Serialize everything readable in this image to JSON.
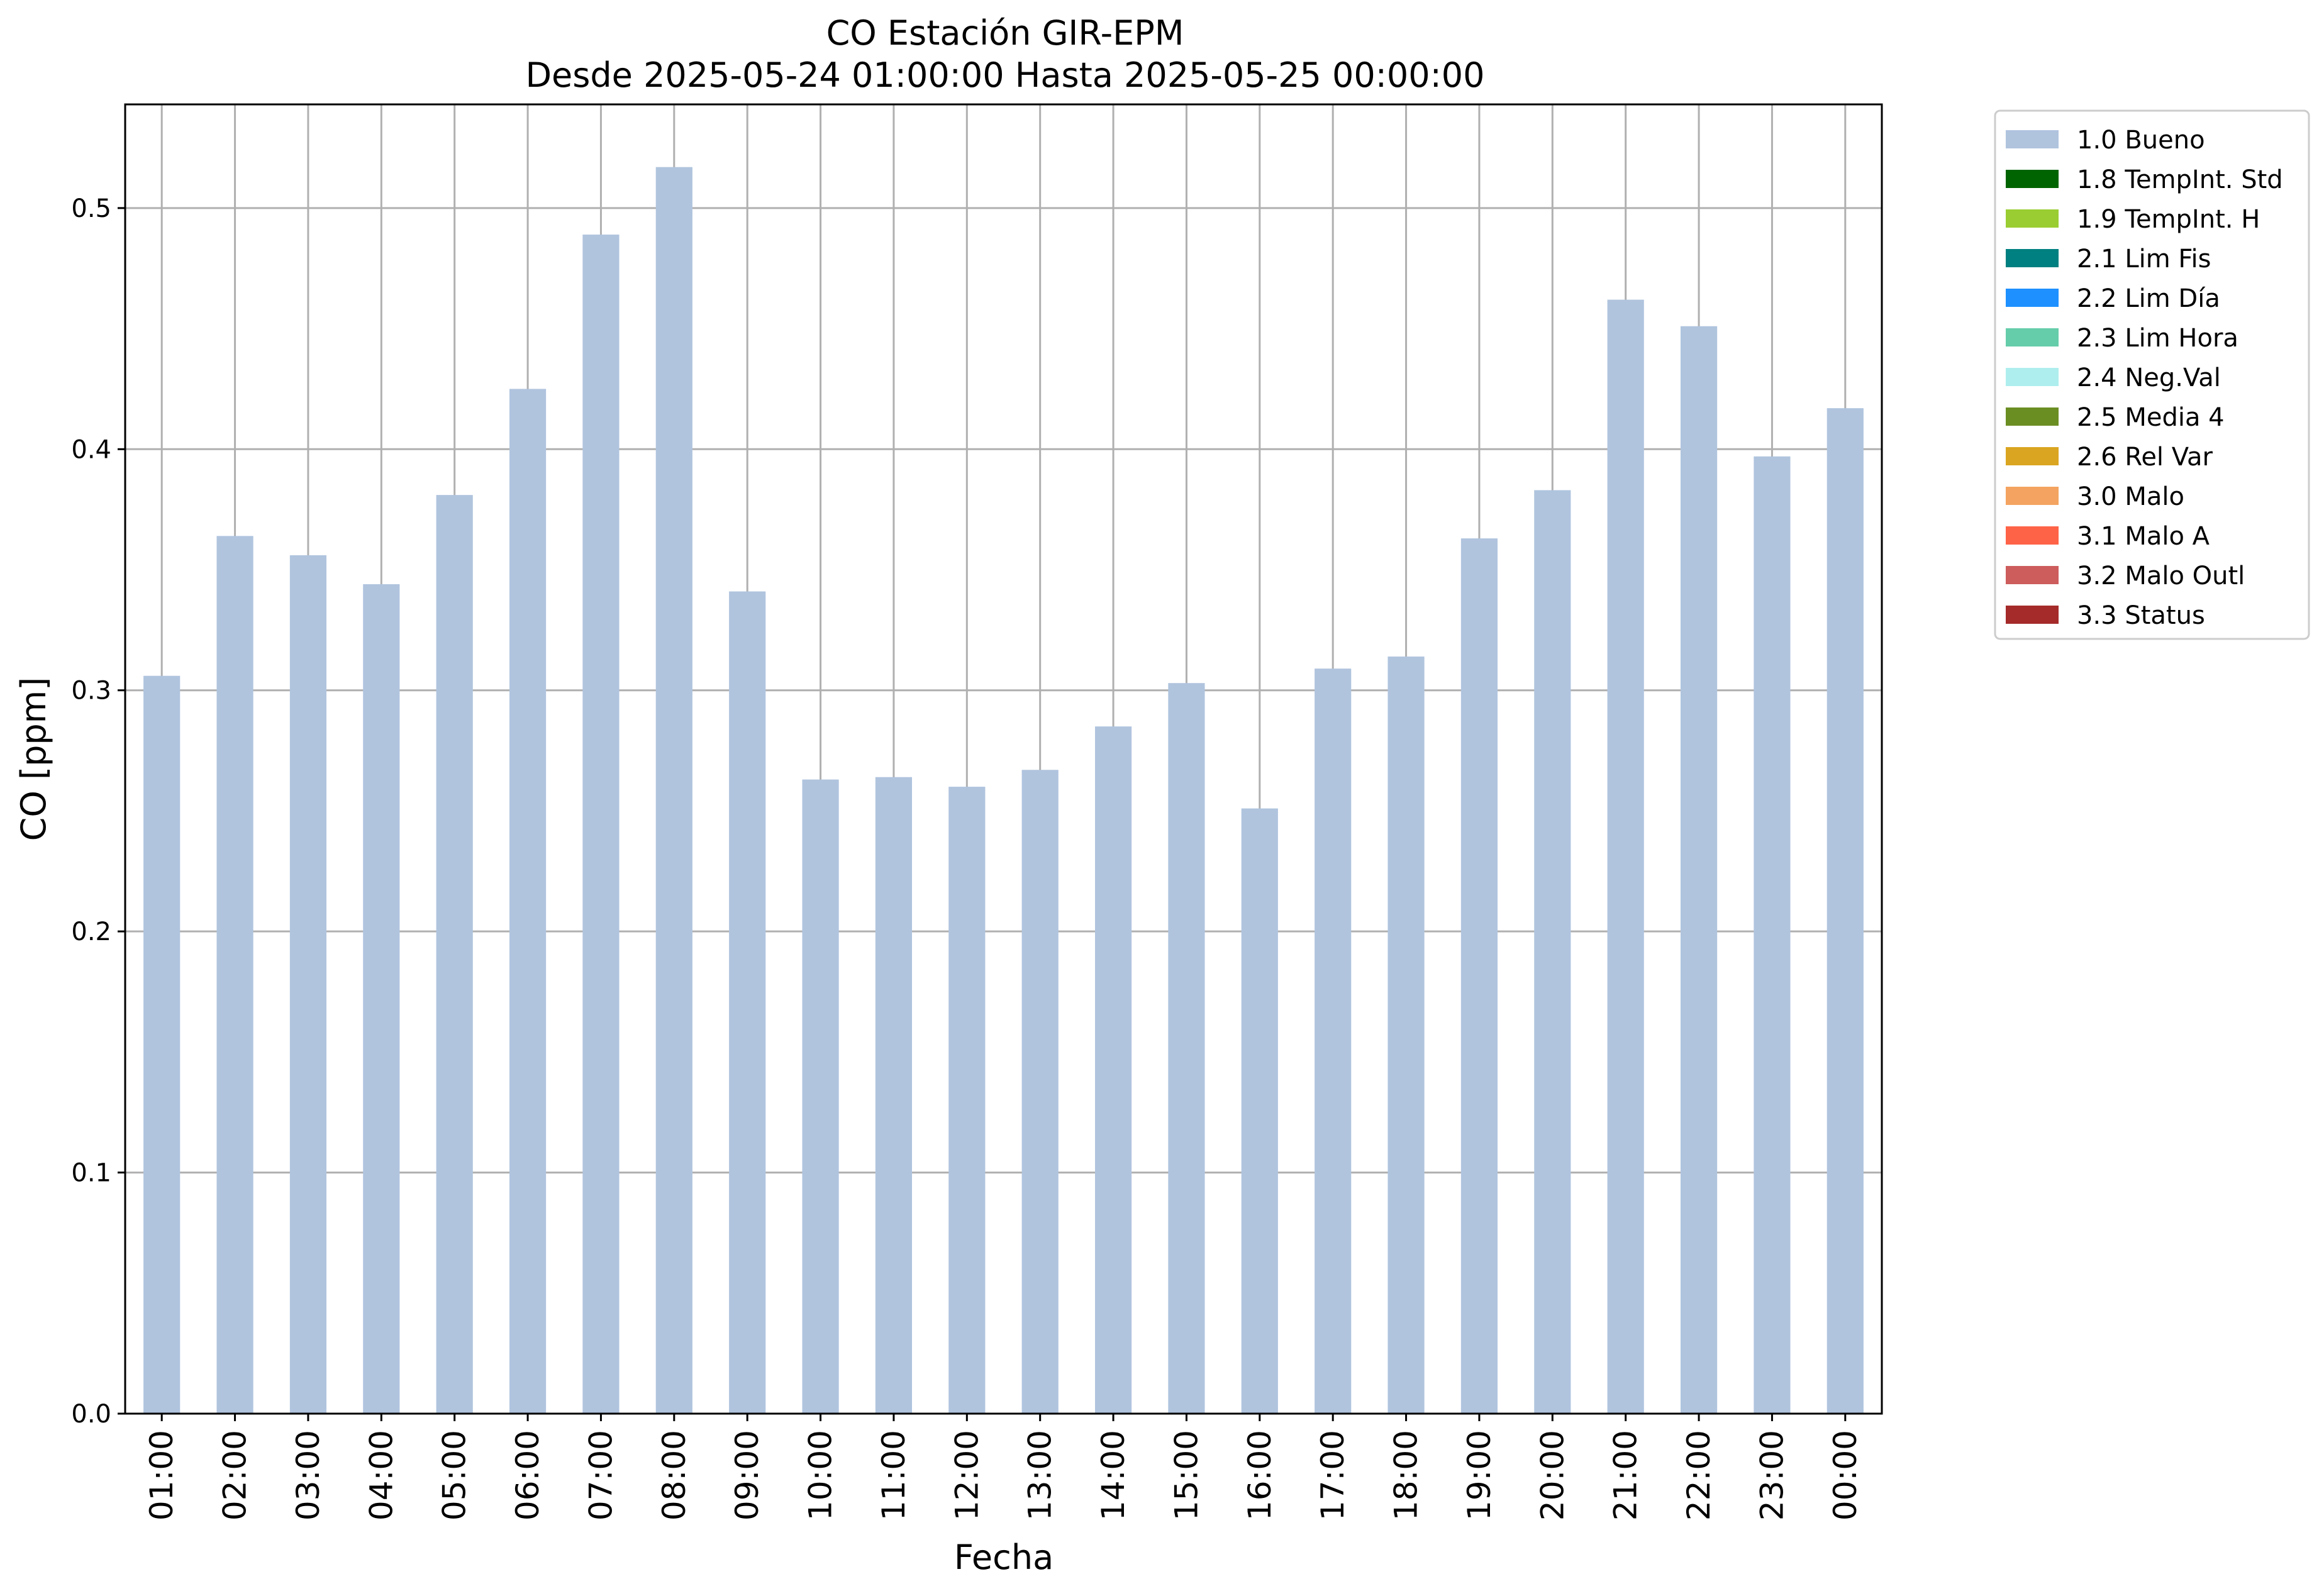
{
  "chart_data": {
    "type": "bar",
    "title": "CO Estación GIR-EPM",
    "subtitle": "Desde 2025-05-24 01:00:00 Hasta 2025-05-25 00:00:00",
    "xlabel": "Fecha",
    "ylabel": "CO [ppm]",
    "ylim": [
      0,
      0.543
    ],
    "yticks": [
      0.0,
      0.1,
      0.2,
      0.3,
      0.4,
      0.5
    ],
    "ytick_labels": [
      "0.0",
      "0.1",
      "0.2",
      "0.3",
      "0.4",
      "0.5"
    ],
    "grid": true,
    "legend_position": "outside top-right",
    "categories": [
      "01:00",
      "02:00",
      "03:00",
      "04:00",
      "05:00",
      "06:00",
      "07:00",
      "08:00",
      "09:00",
      "10:00",
      "11:00",
      "12:00",
      "13:00",
      "14:00",
      "15:00",
      "16:00",
      "17:00",
      "18:00",
      "19:00",
      "20:00",
      "21:00",
      "22:00",
      "23:00",
      "00:00"
    ],
    "series": [
      {
        "name": "1.0 Bueno",
        "color": "#b0c4de",
        "values": [
          0.306,
          0.364,
          0.356,
          0.344,
          0.381,
          0.425,
          0.489,
          0.517,
          0.341,
          0.263,
          0.264,
          0.26,
          0.267,
          0.285,
          0.303,
          0.251,
          0.309,
          0.314,
          0.363,
          0.383,
          0.462,
          0.451,
          0.397,
          0.417
        ]
      }
    ],
    "legend": [
      {
        "label": "1.0 Bueno",
        "color": "#b0c4de"
      },
      {
        "label": "1.8 TempInt. Std",
        "color": "#006400"
      },
      {
        "label": "1.9 TempInt. H",
        "color": "#9acd32"
      },
      {
        "label": "2.1 Lim Fis",
        "color": "#008080"
      },
      {
        "label": "2.2 Lim Día",
        "color": "#1e90ff"
      },
      {
        "label": "2.3 Lim Hora",
        "color": "#66cdaa"
      },
      {
        "label": "2.4 Neg.Val",
        "color": "#afeeee"
      },
      {
        "label": "2.5 Media 4",
        "color": "#6b8e23"
      },
      {
        "label": "2.6 Rel Var",
        "color": "#daa520"
      },
      {
        "label": "3.0 Malo",
        "color": "#f4a460"
      },
      {
        "label": "3.1 Malo A",
        "color": "#ff6347"
      },
      {
        "label": "3.2 Malo Outl",
        "color": "#cd5c5c"
      },
      {
        "label": "3.3 Status",
        "color": "#a52a2a"
      }
    ],
    "colors": {
      "grid": "#b0b0b0",
      "axes": "#000000"
    }
  }
}
